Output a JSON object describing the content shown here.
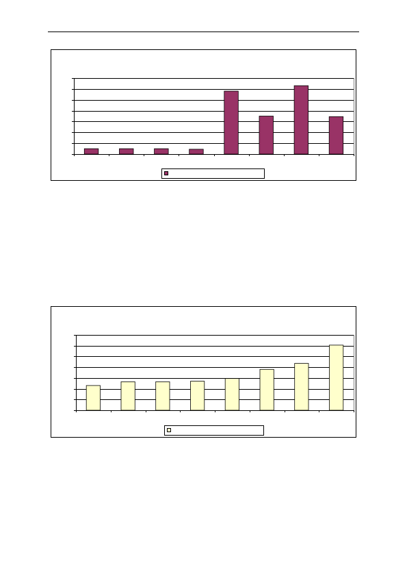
{
  "chart_data": [
    {
      "type": "bar",
      "categories": [
        "",
        "",
        "",
        "",
        "",
        "",
        "",
        ""
      ],
      "series": [
        {
          "values": [
            0.5,
            0.5,
            0.5,
            0.45,
            5.8,
            3.5,
            6.3,
            3.45
          ]
        }
      ],
      "ylim": [
        0,
        7
      ],
      "yticks": [
        0,
        1,
        2,
        3,
        4,
        5,
        6,
        7
      ],
      "grid": true,
      "legend": "bottom",
      "bar_color": "#993366",
      "title": "",
      "xlabel": "",
      "ylabel": ""
    },
    {
      "type": "bar",
      "categories": [
        "",
        "",
        "",
        "",
        "",
        "",
        "",
        ""
      ],
      "series": [
        {
          "values": [
            2.3,
            2.65,
            2.65,
            2.7,
            2.95,
            3.8,
            4.35,
            6.05
          ]
        }
      ],
      "ylim": [
        0,
        7
      ],
      "yticks": [
        0,
        1,
        2,
        3,
        4,
        5,
        6,
        7
      ],
      "grid": true,
      "legend": "bottom",
      "bar_color": "#FFFFCC",
      "title": "",
      "xlabel": "",
      "ylabel": ""
    }
  ]
}
